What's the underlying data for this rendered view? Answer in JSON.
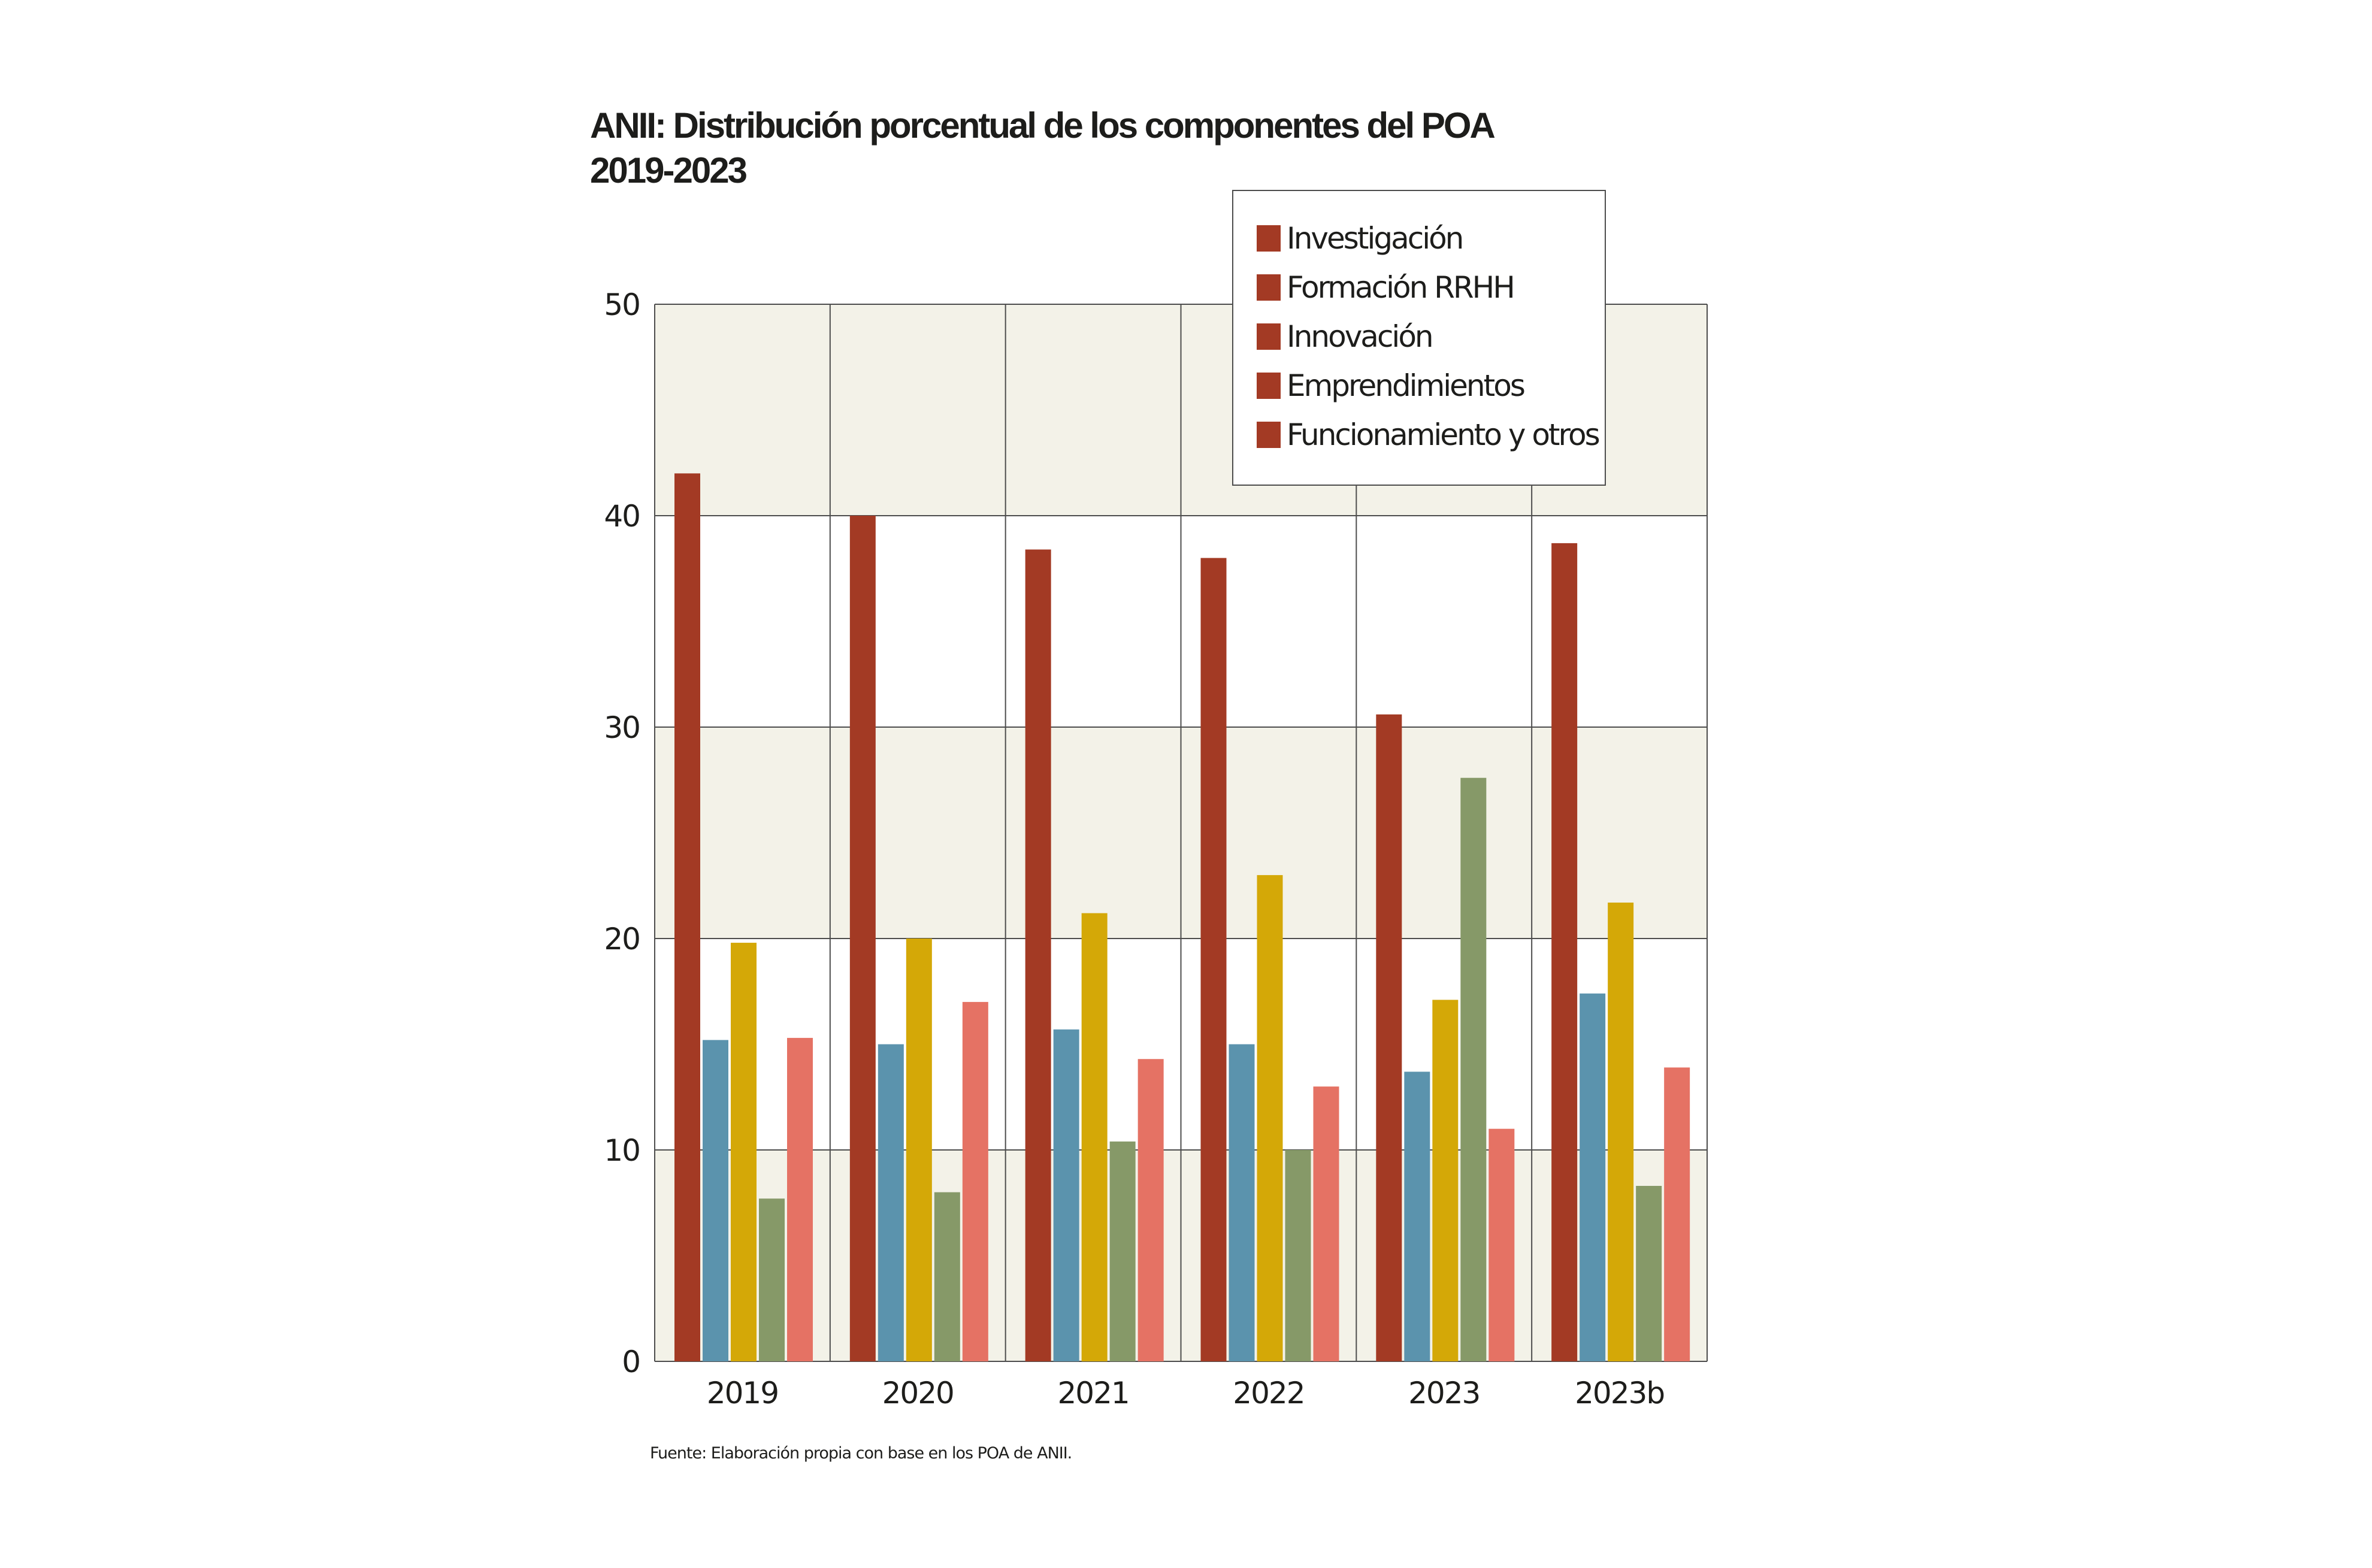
{
  "chart_data": {
    "type": "bar",
    "title": "ANII: Distribución porcentual de los componentes del POA",
    "subtitle": "2019-2023",
    "xlabel": "",
    "ylabel": "",
    "categories": [
      "2019",
      "2020",
      "2021",
      "2022",
      "2023",
      "2023b"
    ],
    "ylim": [
      0,
      50
    ],
    "yticks": [
      0,
      10,
      20,
      30,
      40,
      50
    ],
    "grid": true,
    "legend_position": "top-right",
    "series": [
      {
        "name": "Investigación",
        "color": "#a33a24",
        "legend_color": "#a33a24",
        "values": [
          42.0,
          40.0,
          38.4,
          38.0,
          30.6,
          38.7
        ]
      },
      {
        "name": "Formación RRHH",
        "color": "#5b93ad",
        "legend_color": "#a33a24",
        "values": [
          15.2,
          15.0,
          15.7,
          15.0,
          13.7,
          17.4
        ]
      },
      {
        "name": "Innovación",
        "color": "#d4a807",
        "legend_color": "#a33a24",
        "values": [
          19.8,
          20.0,
          21.2,
          23.0,
          17.1,
          21.7
        ]
      },
      {
        "name": "Emprendimientos",
        "color": "#869968",
        "legend_color": "#a33a24",
        "values": [
          7.7,
          8.0,
          10.4,
          10.0,
          27.6,
          8.3
        ]
      },
      {
        "name": "Funcionamiento y otros",
        "color": "#e57264",
        "legend_color": "#a33a24",
        "values": [
          15.3,
          17.0,
          14.3,
          13.0,
          11.0,
          13.9
        ]
      }
    ],
    "band_color": "#f3f2e8",
    "gridline_color": "#4d4d4d",
    "source": "Fuente: Elaboración propia con base en los POA de ANII."
  }
}
